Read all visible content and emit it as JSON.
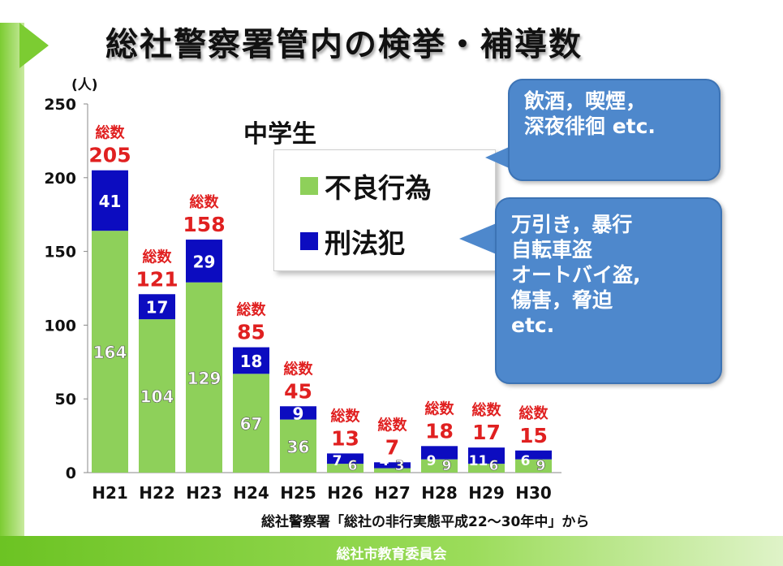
{
  "title": "総社警察署管内の検挙・補導数",
  "footer": "総社市教育委員会",
  "source": "総社警察署「総社の非行実態平成22～30年中」から",
  "colors": {
    "accent": "#7ccc32",
    "series_bad_behavior": "#8ed05a",
    "series_crime": "#0c0cc0",
    "total_label": "#e02020",
    "callout": "#4e88cc"
  },
  "callouts": {
    "bad_behavior": [
      "飲酒，喫煙，",
      "深夜徘徊 etc."
    ],
    "crime": [
      "万引き，暴行",
      "自転車盗",
      "オートバイ盗,",
      "傷害，脅迫",
      "etc."
    ]
  },
  "chart_data": {
    "type": "bar",
    "stacked": true,
    "title": "中学生",
    "unit": "(人)",
    "categories": [
      "H21",
      "H22",
      "H23",
      "H24",
      "H25",
      "H26",
      "H27",
      "H28",
      "H29",
      "H30"
    ],
    "series": [
      {
        "name": "不良行為",
        "values": [
          164,
          104,
          129,
          67,
          36,
          6,
          3,
          9,
          6,
          9
        ]
      },
      {
        "name": "刑法犯",
        "values": [
          41,
          17,
          29,
          18,
          9,
          7,
          4,
          9,
          11,
          6
        ]
      }
    ],
    "totals": [
      205,
      121,
      158,
      85,
      45,
      13,
      7,
      18,
      17,
      15
    ],
    "total_prefix": "総数",
    "ylim": [
      0,
      250
    ],
    "yticks": [
      0,
      50,
      100,
      150,
      200,
      250
    ],
    "grid": false,
    "legend": "inside-right"
  }
}
